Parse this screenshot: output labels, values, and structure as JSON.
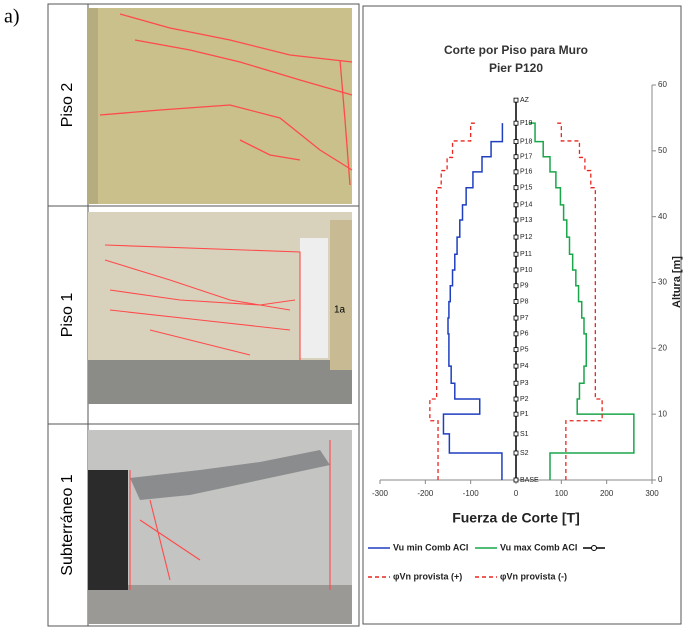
{
  "panel_label": "a)",
  "photos": [
    {
      "label": "Piso 2"
    },
    {
      "label": "Piso 1",
      "sign": "1a"
    },
    {
      "label": "Subterráneo 1"
    }
  ],
  "chart_data": {
    "type": "line",
    "title": "Corte por Piso para Muro",
    "subtitle": "Pier P120",
    "xlabel": "Fuerza de Corte [T]",
    "ylabel": "Altura [m]",
    "xlim": [
      -300,
      300
    ],
    "xticks": [
      -300,
      -200,
      -100,
      0,
      100,
      200,
      300
    ],
    "ylim": [
      0,
      60
    ],
    "yticks": [
      0,
      10,
      20,
      30,
      40,
      50,
      60
    ],
    "series": [
      {
        "name": "Vu min Comb ACI",
        "color": "#1f3fbf",
        "dash": false,
        "x": [
          -31,
          -31,
          -147,
          -147,
          -160,
          -160,
          -80,
          -80,
          -135,
          -135,
          -143,
          -143,
          -148,
          -148,
          -150,
          -150,
          -148,
          -148,
          -145,
          -145,
          -140,
          -140,
          -135,
          -135,
          -130,
          -130,
          -124,
          -124,
          -118,
          -118,
          -110,
          -110,
          -95,
          -95,
          -75,
          -75,
          -55,
          -55,
          -30,
          -30
        ],
        "y": [
          0,
          4.1,
          4.1,
          7,
          7,
          10,
          10,
          12.3,
          12.3,
          14.7,
          14.7,
          17.3,
          17.3,
          22.2,
          22.2,
          24.6,
          24.6,
          27.1,
          27.1,
          29.5,
          29.5,
          31.9,
          31.9,
          34.3,
          34.3,
          36.9,
          36.9,
          39.5,
          39.5,
          41.8,
          41.8,
          44.4,
          44.4,
          46.8,
          46.8,
          49.1,
          49.1,
          51.4,
          51.4,
          54.2
        ]
      },
      {
        "name": "Vu max Comb ACI",
        "color": "#1aa64a",
        "dash": false,
        "x": [
          75,
          75,
          260,
          260,
          135,
          135,
          140,
          140,
          150,
          150,
          155,
          155,
          150,
          150,
          145,
          145,
          138,
          138,
          132,
          132,
          125,
          125,
          118,
          118,
          112,
          112,
          105,
          105,
          98,
          98,
          88,
          88,
          75,
          75,
          60,
          60,
          42,
          42,
          28,
          28
        ],
        "y": [
          0,
          4.1,
          4.1,
          10,
          10,
          12.3,
          12.3,
          14.7,
          14.7,
          17.3,
          17.3,
          22.2,
          22.2,
          24.6,
          24.6,
          27.1,
          27.1,
          29.5,
          29.5,
          31.9,
          31.9,
          34.3,
          34.3,
          36.9,
          36.9,
          39.5,
          39.5,
          41.8,
          41.8,
          44.4,
          44.4,
          46.8,
          46.8,
          49.1,
          49.1,
          51.4,
          51.4,
          54.2,
          54.2,
          54.2
        ]
      },
      {
        "color": "#000000",
        "dash": false,
        "markers": true,
        "x": [
          0,
          0,
          0,
          0,
          0,
          0,
          0,
          0,
          0,
          0,
          0,
          0,
          0,
          0,
          0,
          0,
          0,
          0,
          0,
          0,
          0,
          0,
          0
        ],
        "y": [
          0,
          4.1,
          7,
          10,
          12.3,
          14.7,
          17.3,
          19.8,
          22.2,
          24.6,
          27.1,
          29.5,
          31.9,
          34.3,
          36.9,
          39.5,
          41.8,
          44.4,
          46.8,
          49.1,
          51.4,
          54.2,
          57.7
        ],
        "point_labels": [
          "BASE",
          "S2",
          "S1",
          "P1",
          "P2",
          "P3",
          "P4",
          "P5",
          "P6",
          "P7",
          "P8",
          "P9",
          "P10",
          "P11",
          "P12",
          "P13",
          "P14",
          "P15",
          "P16",
          "P17",
          "P18",
          "P19",
          "AZ"
        ]
      },
      {
        "name": "φVn provista (+)",
        "color": "#e8261f",
        "dash": true,
        "x": [
          110,
          110,
          190,
          190,
          175,
          175,
          165,
          165,
          152,
          152,
          140,
          140,
          100,
          100,
          90
        ],
        "y": [
          0,
          9,
          9,
          12.3,
          12.3,
          44.4,
          44.4,
          47,
          47,
          49,
          49,
          51.5,
          51.5,
          54.2,
          54.2
        ]
      },
      {
        "name": "φVn provista (-)",
        "color": "#e8261f",
        "dash": true,
        "x": [
          -172,
          -172,
          -190,
          -190,
          -175,
          -175,
          -165,
          -165,
          -152,
          -152,
          -140,
          -140,
          -100,
          -100,
          -90
        ],
        "y": [
          0,
          9,
          9,
          12.3,
          12.3,
          44.4,
          44.4,
          47,
          47,
          49,
          49,
          51.5,
          51.5,
          54.2,
          54.2
        ]
      }
    ]
  }
}
